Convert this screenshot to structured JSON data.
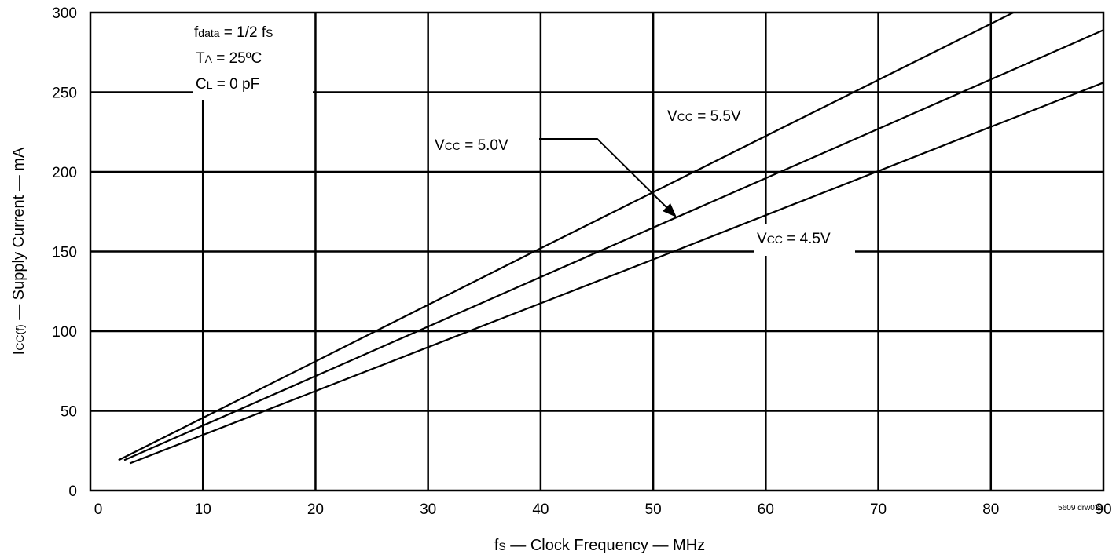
{
  "chart_data": {
    "type": "line",
    "xlabel": {
      "pre": "f",
      "sub": "S",
      "post": " — Clock Frequency — MHz"
    },
    "ylabel": {
      "pre": "I",
      "sub": "CC(f)",
      "post": " — Supply Current — mA"
    },
    "xlim": [
      0,
      90
    ],
    "ylim": [
      0,
      300
    ],
    "x_ticks": [
      0,
      10,
      20,
      30,
      40,
      50,
      60,
      70,
      80,
      90
    ],
    "y_ticks": [
      0,
      50,
      100,
      150,
      200,
      250,
      300
    ],
    "grid": true,
    "series": [
      {
        "name": "VCC = 5.5V",
        "points": [
          [
            2.5,
            19
          ],
          [
            40,
            152
          ],
          [
            82,
            300
          ]
        ]
      },
      {
        "name": "VCC = 5.0V",
        "points": [
          [
            3,
            19
          ],
          [
            50,
            165
          ],
          [
            90,
            289
          ]
        ]
      },
      {
        "name": "VCC = 4.5V",
        "points": [
          [
            3.5,
            17
          ],
          [
            50,
            145
          ],
          [
            90,
            256
          ]
        ]
      }
    ],
    "conditions": [
      {
        "pre": "f",
        "sub": "data",
        "post": " = 1/2 f",
        "sub2": "S"
      },
      {
        "pre": "T",
        "sub": "A",
        "post": " = 25ºC",
        "sub2": ""
      },
      {
        "pre": "C",
        "sub": "L",
        "post": " = 0 pF",
        "sub2": ""
      }
    ],
    "series_labels": [
      {
        "pre": "V",
        "sub": "CC",
        "post": " = 5.5V"
      },
      {
        "pre": "V",
        "sub": "CC",
        "post": " = 5.0V"
      },
      {
        "pre": "V",
        "sub": "CC",
        "post": " = 4.5V"
      }
    ],
    "drawing_id": "5609 drw03a"
  }
}
